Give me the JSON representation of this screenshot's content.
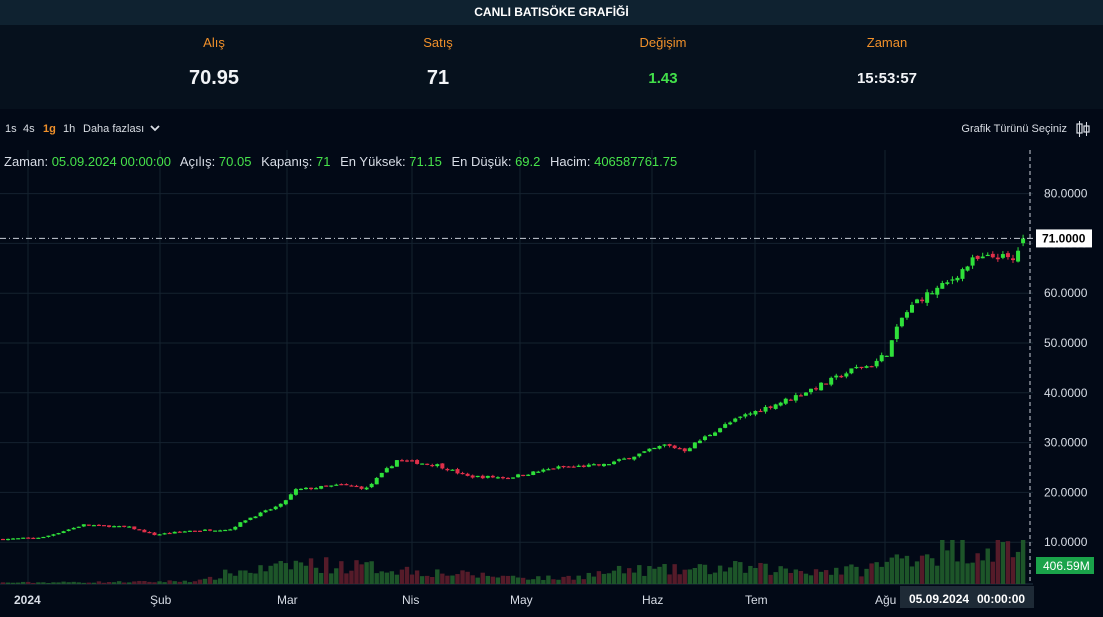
{
  "window": {
    "title": "CANLI BATISÖKE GRAFİĞİ"
  },
  "quote": {
    "bid_label": "Alış",
    "bid_value": "70.95",
    "ask_label": "Satış",
    "ask_value": "71",
    "change_label": "Değişim",
    "change_value": "1.43",
    "time_label": "Zaman",
    "time_value": "15:53:57"
  },
  "toolbar": {
    "timeframes": [
      "1s",
      "4s",
      "1g",
      "1h"
    ],
    "active_timeframe": "1g",
    "more_label": "Daha fazlası",
    "chart_type_label": "Grafik Türünü Seçiniz"
  },
  "info": {
    "time_label": "Zaman:",
    "time_value": "05.09.2024 00:00:00",
    "open_label": "Açılış:",
    "open_value": "70.05",
    "close_label": "Kapanış:",
    "close_value": "71",
    "high_label": "En Yüksek:",
    "high_value": "71.15",
    "low_label": "En Düşük:",
    "low_value": "69.2",
    "volume_label": "Hacim:",
    "volume_value": "406587761.75"
  },
  "colors": {
    "up": "#2fe03a",
    "down": "#e0304a",
    "accent": "#f0902a",
    "bg": "#020916"
  },
  "chart_data": {
    "type": "candlestick",
    "title": "CANLI BATISÖKE GRAFİĞİ",
    "ylim": [
      0,
      88
    ],
    "y_ticks": [
      "10.0000",
      "20.0000",
      "30.0000",
      "40.0000",
      "50.0000",
      "60.0000",
      "70.0000",
      "80.0000"
    ],
    "x_tick_labels": [
      "2024",
      "Şub",
      "Mar",
      "Nis",
      "May",
      "Haz",
      "Tem",
      "Ağu"
    ],
    "last_price_label": "71.0000",
    "last_price": 71,
    "volume_label": "406.59M",
    "crosshair_date_label": "05.09.2024",
    "crosshair_time_label": "00:00:00",
    "close_path": [
      [
        0,
        10.6
      ],
      [
        8,
        11.0
      ],
      [
        16,
        13.5
      ],
      [
        25,
        13.0
      ],
      [
        30,
        11.5
      ],
      [
        37,
        12.3
      ],
      [
        45,
        12.6
      ],
      [
        48,
        14.5
      ],
      [
        55,
        17.5
      ],
      [
        58,
        20.5
      ],
      [
        67,
        21.5
      ],
      [
        72,
        20.8
      ],
      [
        78,
        26.5
      ],
      [
        86,
        25.5
      ],
      [
        92,
        23.2
      ],
      [
        100,
        23.0
      ],
      [
        110,
        25.0
      ],
      [
        119,
        25.5
      ],
      [
        124,
        27.0
      ],
      [
        131,
        29.5
      ],
      [
        135,
        28.5
      ],
      [
        142,
        33.0
      ],
      [
        147,
        35.5
      ],
      [
        155,
        38.5
      ],
      [
        163,
        42.0
      ],
      [
        169,
        45.0
      ],
      [
        172,
        45.5
      ],
      [
        175,
        48.0
      ],
      [
        178,
        55.0
      ],
      [
        181,
        58.5
      ],
      [
        187,
        62.0
      ],
      [
        192,
        66.5
      ],
      [
        197,
        67.5
      ],
      [
        200,
        66.5
      ],
      [
        202,
        71.0
      ]
    ],
    "volume_profile": [
      [
        0,
        0.03
      ],
      [
        30,
        0.05
      ],
      [
        40,
        0.08
      ],
      [
        45,
        0.25
      ],
      [
        55,
        0.35
      ],
      [
        58,
        0.45
      ],
      [
        75,
        0.35
      ],
      [
        80,
        0.3
      ],
      [
        92,
        0.2
      ],
      [
        110,
        0.12
      ],
      [
        124,
        0.3
      ],
      [
        135,
        0.3
      ],
      [
        145,
        0.35
      ],
      [
        155,
        0.3
      ],
      [
        170,
        0.3
      ],
      [
        175,
        0.45
      ],
      [
        180,
        0.65
      ],
      [
        190,
        0.75
      ],
      [
        202,
        0.8
      ]
    ]
  }
}
